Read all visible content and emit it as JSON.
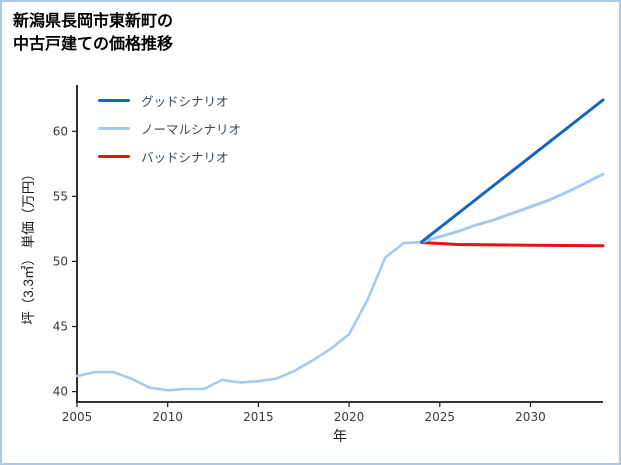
{
  "title": {
    "line1": "新潟県長岡市東新町の",
    "line2": "中古戸建ての価格推移"
  },
  "chart_data": {
    "type": "line",
    "title": "新潟県長岡市東新町の中古戸建ての価格推移",
    "xlabel": "年",
    "ylabel": "坪（3.3㎡） 単価（万円）",
    "xlim": [
      2005,
      2034
    ],
    "ylim": [
      39.2,
      63.4
    ],
    "xticks": [
      2005,
      2010,
      2015,
      2020,
      2025,
      2030
    ],
    "yticks": [
      40,
      45,
      50,
      55,
      60
    ],
    "grid": false,
    "legend_position": "upper left",
    "background_color": "#ffffff",
    "border_color": "#a9cbe8",
    "axis_color": "#1a1a1a",
    "series": [
      {
        "name": "グッドシナリオ",
        "color": "#1565c0",
        "width": 3,
        "in_legend": true,
        "points": [
          [
            2024,
            51.5
          ],
          [
            2034,
            62.4
          ]
        ]
      },
      {
        "name": "ノーマルシナリオ",
        "color": "#a3cbf0",
        "width": 3,
        "in_legend": true,
        "points": [
          [
            2024,
            51.5
          ],
          [
            2025,
            51.9
          ],
          [
            2026,
            52.3
          ],
          [
            2027,
            52.8
          ],
          [
            2028,
            53.2
          ],
          [
            2029,
            53.7
          ],
          [
            2030,
            54.2
          ],
          [
            2031,
            54.7
          ],
          [
            2032,
            55.3
          ],
          [
            2033,
            56.0
          ],
          [
            2034,
            56.7
          ]
        ]
      },
      {
        "name": "バッドシナリオ",
        "color": "#e81212",
        "width": 3,
        "in_legend": true,
        "points": [
          [
            2024,
            51.45
          ],
          [
            2026,
            51.3
          ],
          [
            2030,
            51.25
          ],
          [
            2034,
            51.2
          ]
        ]
      },
      {
        "name": "historical",
        "color": "#a3cbf0",
        "width": 2.6,
        "in_legend": false,
        "points": [
          [
            2005,
            41.2
          ],
          [
            2006,
            41.5
          ],
          [
            2007,
            41.5
          ],
          [
            2008,
            41.0
          ],
          [
            2009,
            40.3
          ],
          [
            2010,
            40.1
          ],
          [
            2011,
            40.2
          ],
          [
            2012,
            40.2
          ],
          [
            2013,
            40.9
          ],
          [
            2014,
            40.7
          ],
          [
            2015,
            40.8
          ],
          [
            2016,
            41.0
          ],
          [
            2017,
            41.6
          ],
          [
            2018,
            42.4
          ],
          [
            2019,
            43.3
          ],
          [
            2020,
            44.4
          ],
          [
            2021,
            47.0
          ],
          [
            2022,
            50.3
          ],
          [
            2023,
            51.4
          ],
          [
            2024,
            51.5
          ]
        ]
      }
    ]
  }
}
